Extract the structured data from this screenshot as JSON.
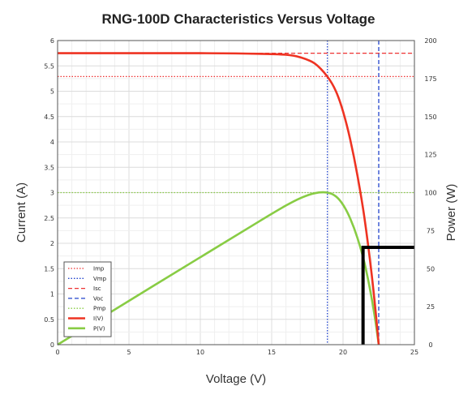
{
  "chart_data": {
    "type": "line",
    "title": "RNG-100D Characteristics Versus Voltage",
    "xlabel": "Voltage (V)",
    "ylabel_left": "Current (A)",
    "ylabel_right": "Power (W)",
    "xlim": [
      0,
      25
    ],
    "ylim_left": [
      0,
      6
    ],
    "ylim_right": [
      0,
      200
    ],
    "x_ticks": [
      "0",
      "5",
      "10",
      "15",
      "20",
      "25"
    ],
    "y_left_ticks": [
      "0",
      "0.5",
      "1",
      "1.5",
      "2",
      "2.5",
      "3",
      "3.5",
      "4",
      "4.5",
      "5",
      "5.5",
      "6"
    ],
    "y_right_ticks": [
      "0",
      "25",
      "50",
      "75",
      "100",
      "125",
      "150",
      "175",
      "200"
    ],
    "grid": true,
    "legend_position": "bottom-left",
    "reference_lines": [
      {
        "name": "Imp",
        "axis": "left",
        "orientation": "horizontal",
        "value": 5.29,
        "color": "#ee3333",
        "dash": "dotted"
      },
      {
        "name": "Vmp",
        "axis": "x",
        "orientation": "vertical",
        "value": 18.9,
        "color": "#2244cc",
        "dash": "dotted"
      },
      {
        "name": "Isc",
        "axis": "left",
        "orientation": "horizontal",
        "value": 5.75,
        "color": "#ee3333",
        "dash": "dashed"
      },
      {
        "name": "Voc",
        "axis": "x",
        "orientation": "vertical",
        "value": 22.5,
        "color": "#2244cc",
        "dash": "dashed"
      },
      {
        "name": "Pmp",
        "axis": "right",
        "orientation": "horizontal",
        "value": 100,
        "color": "#88cc44",
        "dash": "dotted"
      }
    ],
    "series": [
      {
        "name": "I(V)",
        "axis": "left",
        "color": "#ee3322",
        "x": [
          0,
          5,
          10,
          14,
          16,
          17,
          18,
          18.9,
          19.5,
          20,
          20.5,
          21,
          21.5,
          22,
          22.3,
          22.5
        ],
        "y": [
          5.75,
          5.75,
          5.75,
          5.74,
          5.72,
          5.67,
          5.55,
          5.29,
          5.0,
          4.6,
          4.05,
          3.35,
          2.5,
          1.4,
          0.6,
          0
        ]
      },
      {
        "name": "P(V)",
        "axis": "right",
        "color": "#88cc44",
        "x": [
          0,
          5,
          10,
          14,
          16,
          17,
          18,
          18.9,
          19.5,
          20,
          20.5,
          21,
          21.5,
          22,
          22.3,
          22.5
        ],
        "y": [
          0,
          28.8,
          57.5,
          80.4,
          91.5,
          96.3,
          99.6,
          100,
          97.5,
          92,
          83,
          70.4,
          53.8,
          30.8,
          13.4,
          0
        ]
      }
    ],
    "overlay_bracket": {
      "x_from": 21.4,
      "x_to": 25,
      "y_left": 1.92,
      "y_bottom": 0,
      "color": "#000000"
    }
  }
}
